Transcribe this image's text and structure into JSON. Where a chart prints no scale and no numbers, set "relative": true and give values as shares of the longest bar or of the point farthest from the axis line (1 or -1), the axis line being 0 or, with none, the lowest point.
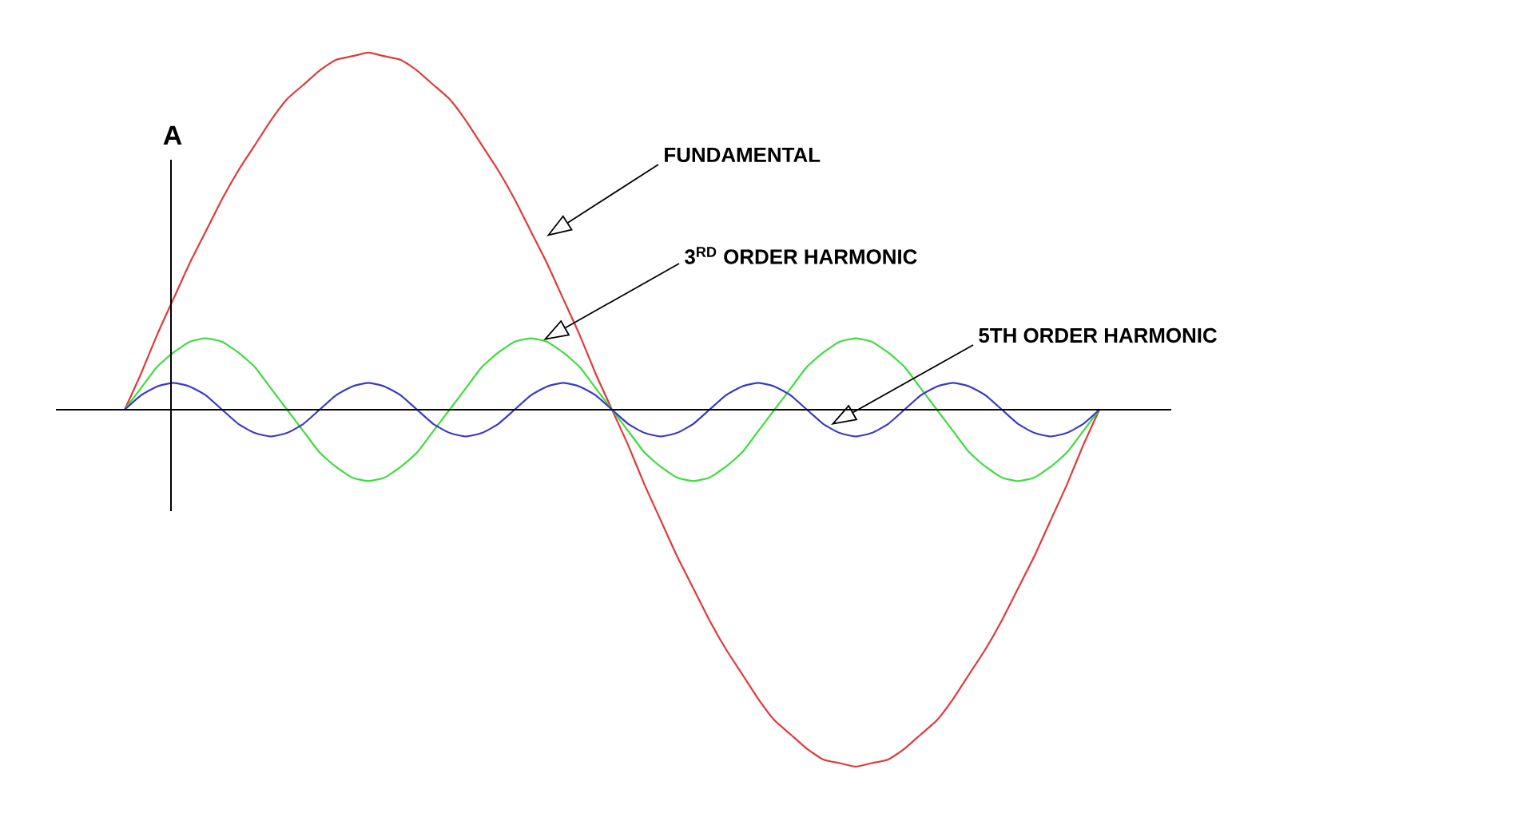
{
  "chart_data": {
    "type": "line",
    "relative": true,
    "ylabel": "A",
    "categories": [
      null,
      null,
      null,
      null,
      null,
      null,
      null,
      null,
      null,
      null,
      null,
      null,
      null,
      null,
      null,
      null,
      null,
      null,
      null,
      null,
      null,
      null,
      null,
      null,
      null,
      null,
      null,
      null,
      null,
      null,
      null,
      null,
      null,
      null,
      null,
      null,
      null,
      null,
      null,
      null,
      null,
      null,
      null,
      null,
      null,
      null,
      null,
      null,
      null,
      null,
      null,
      null,
      null,
      null,
      null,
      null,
      null,
      null,
      null,
      null,
      null
    ],
    "series": [
      {
        "color": "#e03a3a",
        "values": [
          0,
          0.1,
          0.21,
          0.31,
          0.41,
          0.5,
          0.59,
          0.67,
          0.74,
          0.81,
          0.87,
          0.91,
          0.95,
          0.98,
          0.99,
          1,
          0.99,
          0.98,
          0.95,
          0.91,
          0.87,
          0.81,
          0.74,
          0.67,
          0.59,
          0.5,
          0.41,
          0.31,
          0.21,
          0.1,
          0,
          -0.1,
          -0.21,
          -0.31,
          -0.41,
          -0.5,
          -0.59,
          -0.67,
          -0.74,
          -0.81,
          -0.87,
          -0.91,
          -0.95,
          -0.98,
          -0.99,
          -1,
          -0.99,
          -0.98,
          -0.95,
          -0.91,
          -0.87,
          -0.81,
          -0.74,
          -0.67,
          -0.59,
          -0.5,
          -0.41,
          -0.31,
          -0.21,
          -0.1,
          0
        ]
      },
      {
        "color": "#3ddc3d",
        "values": [
          0,
          0.06,
          0.12,
          0.16,
          0.19,
          0.2,
          0.19,
          0.16,
          0.12,
          0.06,
          0,
          -0.06,
          -0.12,
          -0.16,
          -0.19,
          -0.2,
          -0.19,
          -0.16,
          -0.12,
          -0.06,
          0,
          0.06,
          0.12,
          0.16,
          0.19,
          0.2,
          0.19,
          0.16,
          0.12,
          0.06,
          0,
          -0.06,
          -0.12,
          -0.16,
          -0.19,
          -0.2,
          -0.19,
          -0.16,
          -0.12,
          -0.06,
          0,
          0.06,
          0.12,
          0.16,
          0.19,
          0.2,
          0.19,
          0.16,
          0.12,
          0.06,
          0,
          -0.06,
          -0.12,
          -0.16,
          -0.19,
          -0.2,
          -0.19,
          -0.16,
          -0.12,
          -0.06,
          0
        ]
      },
      {
        "color": "#3a3ac8",
        "values": [
          0,
          0.04,
          0.065,
          0.075,
          0.065,
          0.04,
          0,
          -0.04,
          -0.065,
          -0.075,
          -0.065,
          -0.04,
          0,
          0.04,
          0.065,
          0.075,
          0.065,
          0.04,
          0,
          -0.04,
          -0.065,
          -0.075,
          -0.065,
          -0.04,
          0,
          0.04,
          0.065,
          0.075,
          0.065,
          0.04,
          0,
          -0.04,
          -0.065,
          -0.075,
          -0.065,
          -0.04,
          0,
          0.04,
          0.065,
          0.075,
          0.065,
          0.04,
          0,
          -0.04,
          -0.065,
          -0.075,
          -0.065,
          -0.04,
          0,
          0.04,
          0.065,
          0.075,
          0.065,
          0.04,
          0,
          -0.04,
          -0.065,
          -0.075,
          -0.065,
          -0.04,
          0
        ]
      }
    ],
    "annotations": [
      "FUNDAMENTAL",
      "3$^{RD}$ ORDER HARMONIC",
      "5TH ORDER HARMONIC"
    ]
  }
}
